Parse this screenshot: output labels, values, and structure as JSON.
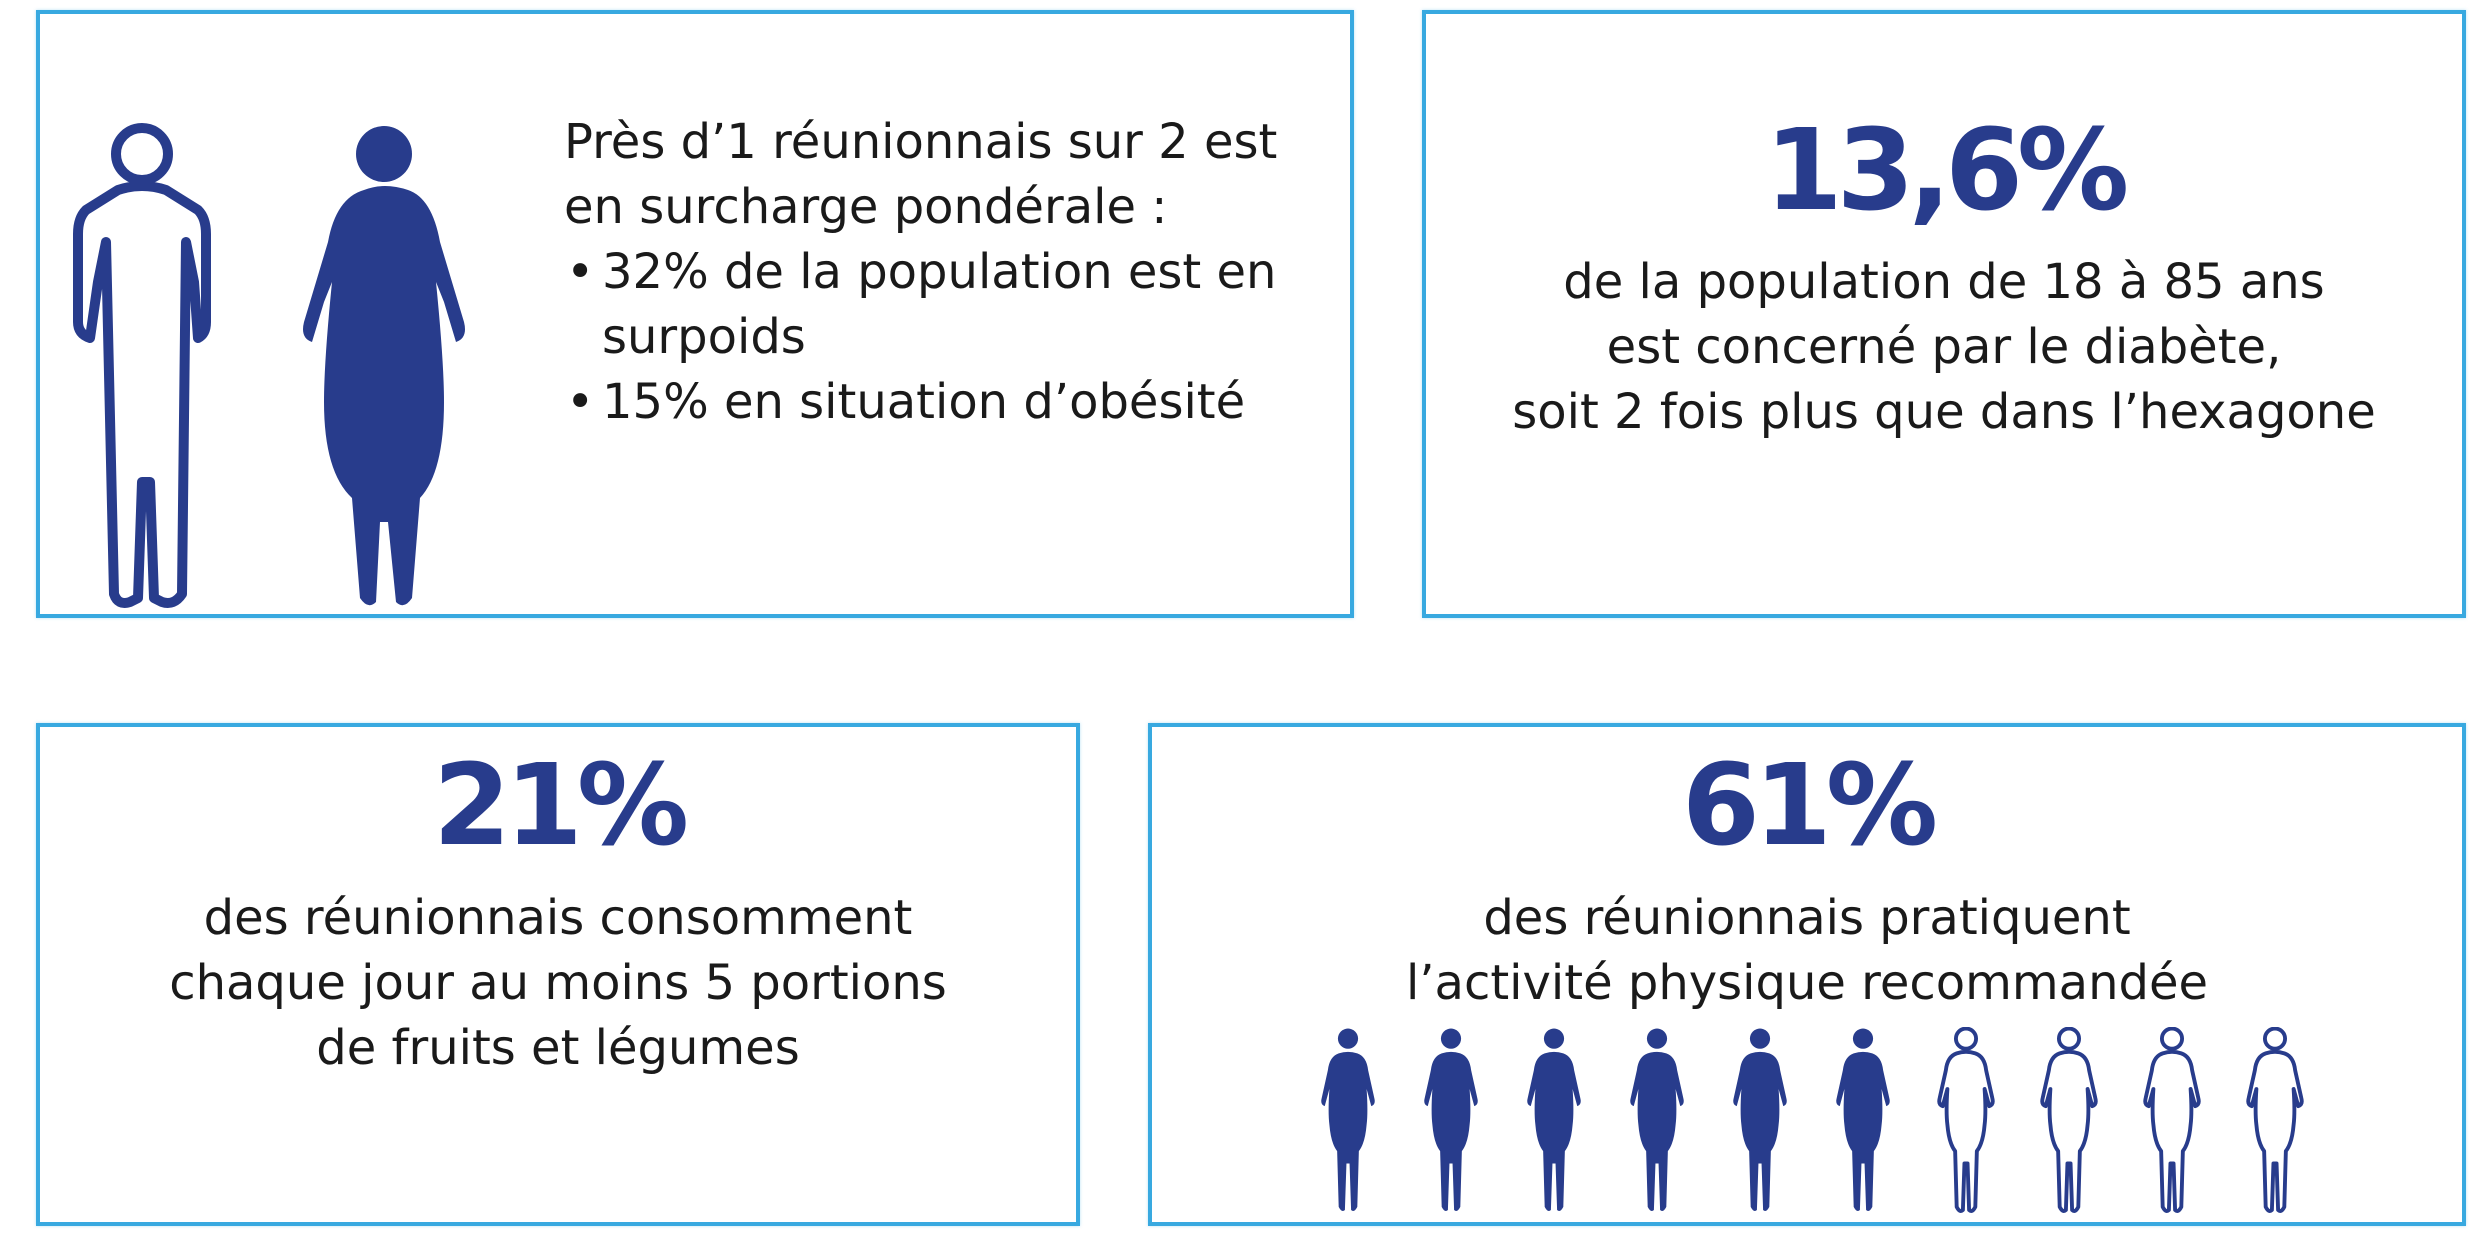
{
  "colors": {
    "accent": "#283c8c",
    "border": "#38a9e0",
    "text": "#1a1a1a"
  },
  "card_overweight": {
    "line1": "Près d’1 réunionnais sur 2 est",
    "line2": "en surcharge pondérale :",
    "bullets": [
      {
        "lines": [
          "32% de la population est en",
          "surpoids"
        ]
      },
      {
        "lines": [
          "15% en situation d’obésité"
        ]
      }
    ],
    "bullet_char": "•",
    "icons": [
      "person-outline-icon",
      "person-filled-icon"
    ]
  },
  "card_diabetes": {
    "value": "13,6%",
    "lines": [
      "de la population de 18 à 85 ans",
      "est concerné par le diabète,",
      "soit 2 fois plus que dans l’hexagone"
    ]
  },
  "card_fruits": {
    "value": "21%",
    "lines": [
      "des réunionnais consomment",
      "chaque jour au moins 5 portions",
      "de fruits et légumes"
    ]
  },
  "card_activity": {
    "value": "61%",
    "lines": [
      "des réunionnais pratiquent",
      "l’activité physique recommandée"
    ],
    "people_filled": 6,
    "people_total": 10,
    "icons": [
      "person-filled-icon",
      "person-outline-icon"
    ]
  }
}
